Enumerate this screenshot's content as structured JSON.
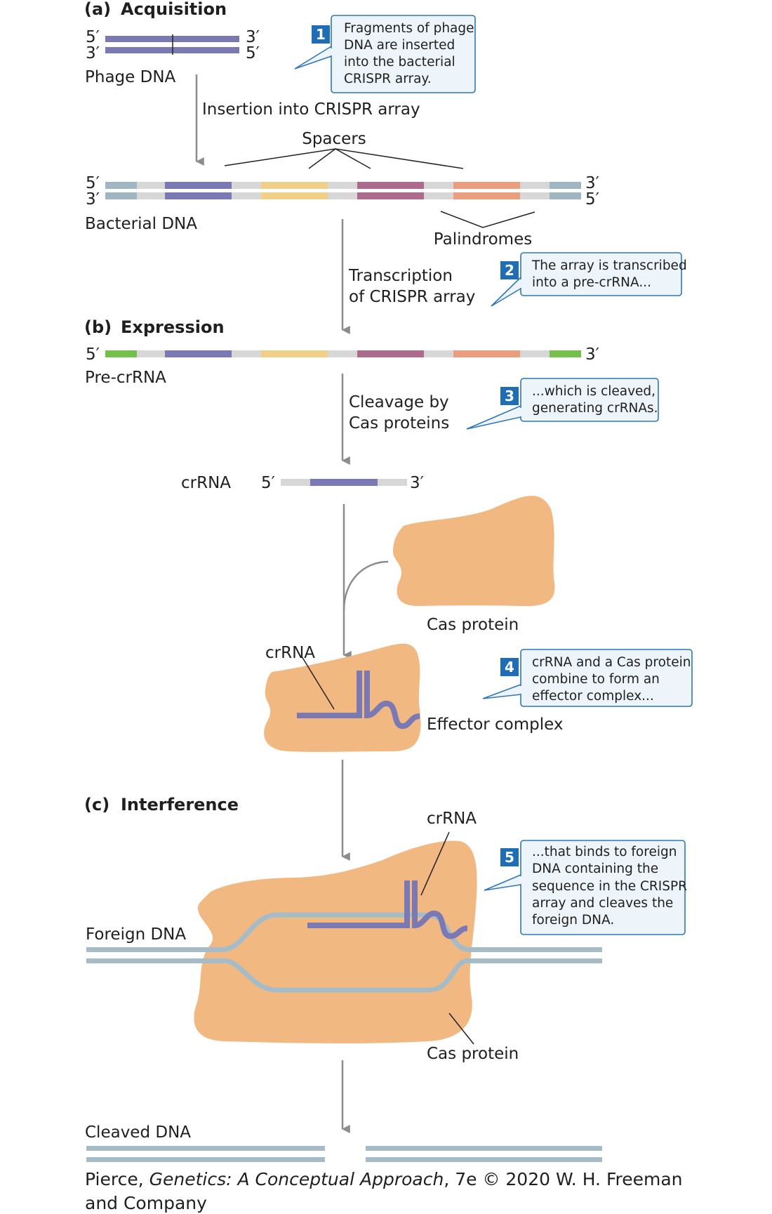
{
  "sections": {
    "a": {
      "letter": "(a)",
      "title": "Acquisition"
    },
    "b": {
      "letter": "(b)",
      "title": "Expression"
    },
    "c": {
      "letter": "(c)",
      "title": "Interference"
    }
  },
  "strand_ends": {
    "five": "5′",
    "three": "3′"
  },
  "labels": {
    "phage_dna": "Phage DNA",
    "insertion": "Insertion into CRISPR array",
    "spacers": "Spacers",
    "bacterial_dna": "Bacterial DNA",
    "palindromes": "Palindromes",
    "transcription_line1": "Transcription",
    "transcription_line2": "of CRISPR array",
    "pre_crrna": "Pre-crRNA",
    "cleavage_line1": "Cleavage by",
    "cleavage_line2": "Cas proteins",
    "crrna": "crRNA",
    "cas_protein": "Cas protein",
    "effector_complex": "Effector complex",
    "foreign_dna": "Foreign DNA",
    "cleaved_dna": "Cleaved DNA"
  },
  "callouts": [
    {
      "number": "1",
      "lines": [
        "Fragments of phage",
        "DNA are inserted",
        "into the bacterial",
        "CRISPR array."
      ]
    },
    {
      "number": "2",
      "lines": [
        "The array is transcribed",
        "into a pre-crRNA..."
      ]
    },
    {
      "number": "3",
      "lines": [
        "...which is cleaved,",
        "generating crRNAs."
      ]
    },
    {
      "number": "4",
      "lines": [
        "crRNA and a Cas protein",
        "combine to form an",
        "effector complex..."
      ]
    },
    {
      "number": "5",
      "lines": [
        "...that binds to foreign",
        "DNA containing the",
        "sequence in the CRISPR",
        "array and cleaves the",
        "foreign DNA."
      ]
    }
  ],
  "credit": {
    "author": "Pierce, ",
    "book": "Genetics: A Conceptual Approach",
    "rest": ", 7e © 2020 W. H. Freeman",
    "line2": "and Company"
  },
  "colors": {
    "phage_strand": "#7b79b4",
    "spacer_blue": "#7b79b4",
    "spacer_yellow": "#f1cf86",
    "spacer_magenta": "#ad6a8c",
    "spacer_salmon": "#e99e7e",
    "repeat_gray": "#d7d7d7",
    "flank_blue": "#9fb6c2",
    "end_green": "#74c04b",
    "cas_protein": "#f2b882",
    "foreign_dna": "#a5bcc8",
    "callout_box": "#eef5fa",
    "callout_border": "#2f76b8",
    "number_badge": "#1f6db5",
    "arrow": "#8c8c8c"
  },
  "icons": {
    "badge": "numbered-step-badge",
    "arrow": "down-arrow-icon"
  }
}
